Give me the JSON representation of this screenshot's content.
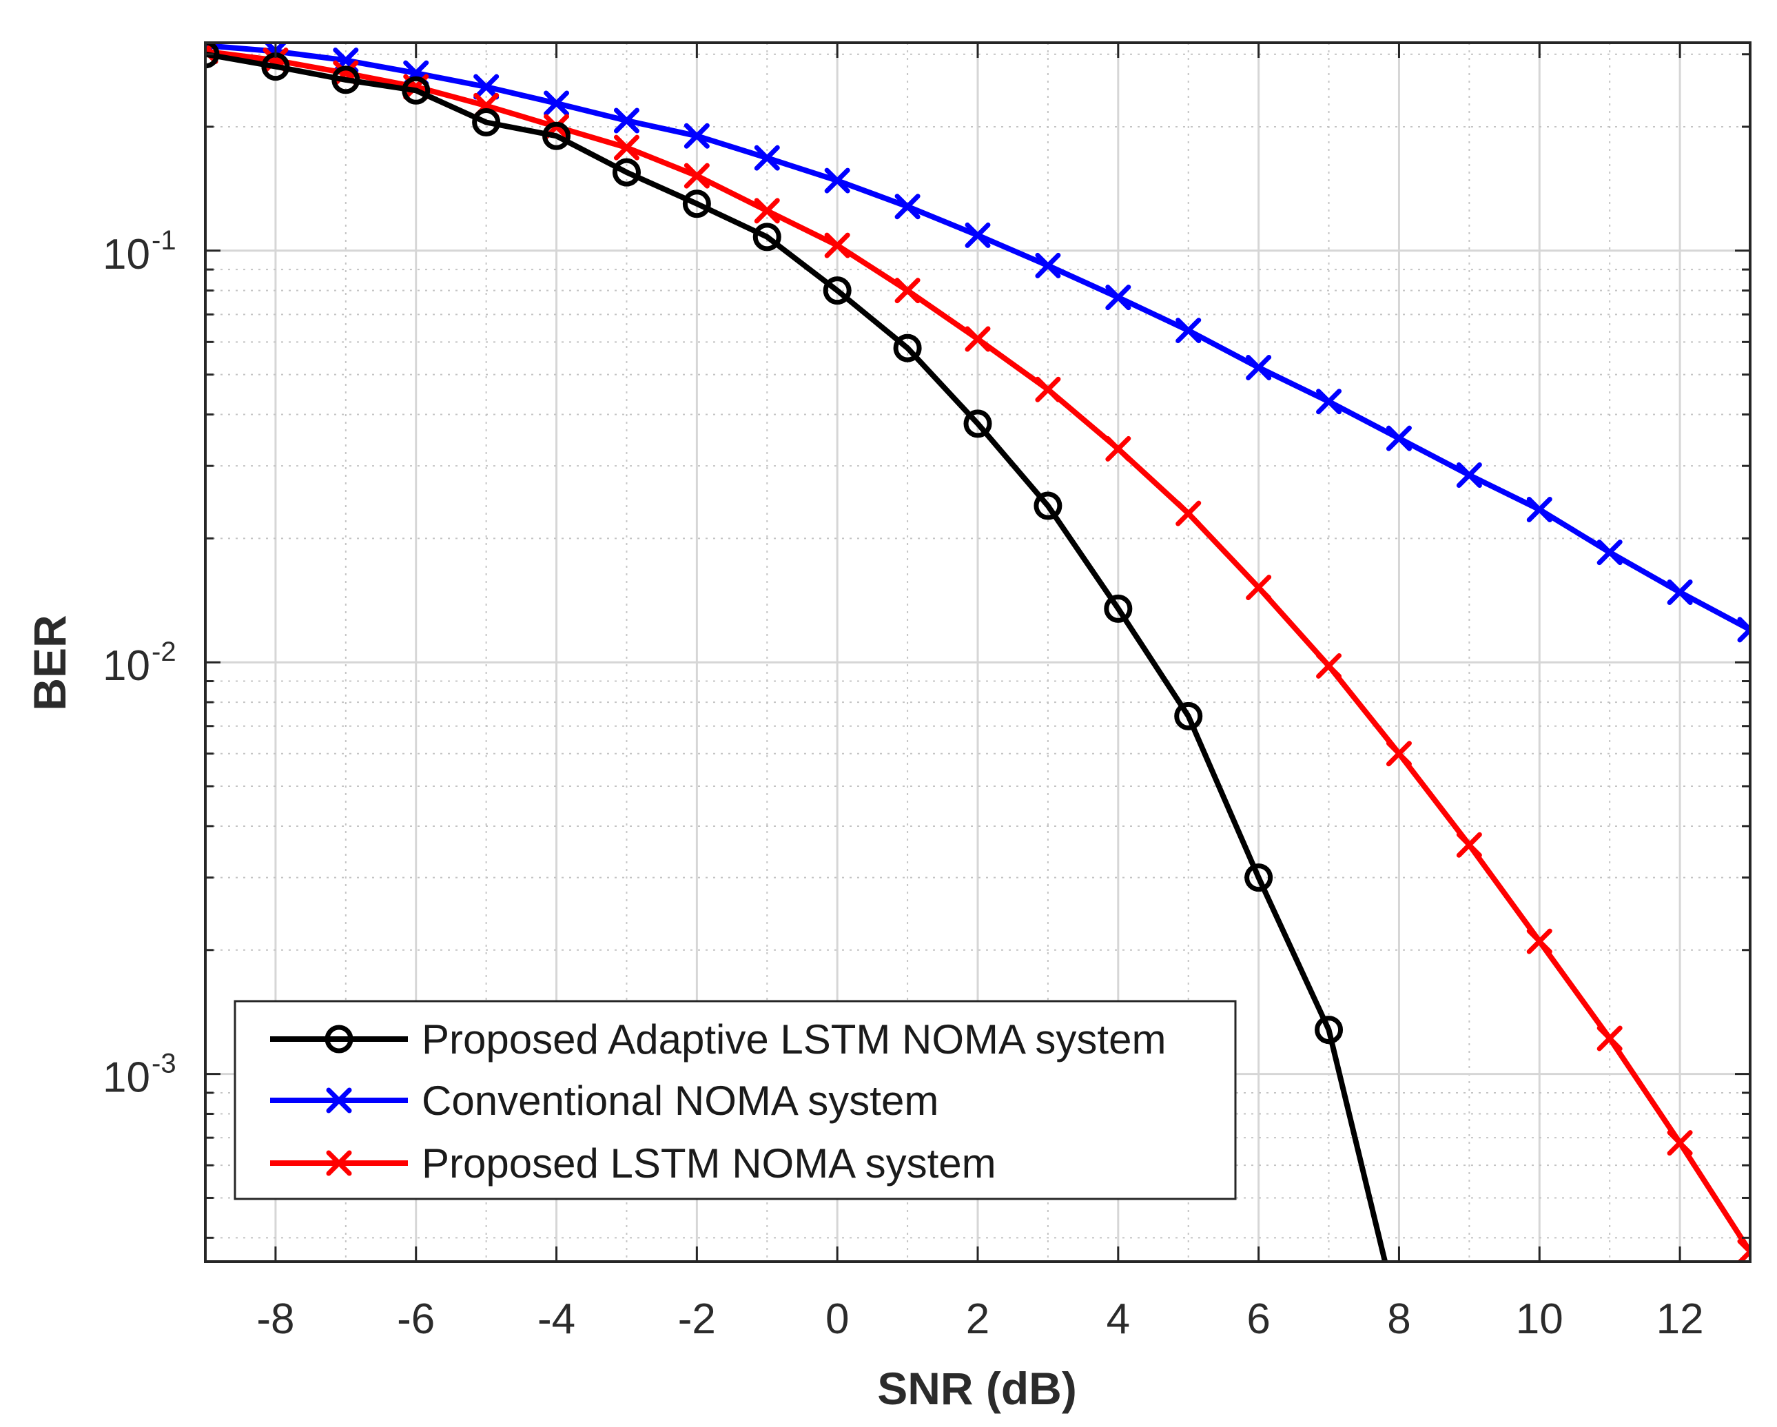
{
  "chart_data": {
    "type": "line",
    "title": "",
    "xlabel": "SNR (dB)",
    "ylabel": "BER",
    "yscale": "log",
    "xlim": [
      -9,
      13
    ],
    "ylim": [
      0.00035,
      0.32
    ],
    "grid": true,
    "legend_position": "bottom-left",
    "xticks": [
      -8,
      -6,
      -4,
      -2,
      0,
      2,
      4,
      6,
      8,
      10,
      12
    ],
    "xtick_labels": [
      "-8",
      "-6",
      "-4",
      "-2",
      "0",
      "2",
      "4",
      "6",
      "8",
      "10",
      "12"
    ],
    "yticks": [
      {
        "value": 0.1,
        "base": "10",
        "exp": "-1"
      },
      {
        "value": 0.01,
        "base": "10",
        "exp": "-2"
      },
      {
        "value": 0.001,
        "base": "10",
        "exp": "-3"
      }
    ],
    "series": [
      {
        "name": "Proposed Adaptive LSTM NOMA system",
        "color": "#000000",
        "marker": "circle",
        "x": [
          -9,
          -8,
          -7,
          -6,
          -5,
          -4,
          -3,
          -2,
          -1,
          0,
          1,
          2,
          3,
          4,
          5,
          6,
          7,
          7.8
        ],
        "values": [
          0.3,
          0.28,
          0.26,
          0.245,
          0.205,
          0.19,
          0.155,
          0.13,
          0.108,
          0.08,
          0.058,
          0.038,
          0.024,
          0.0135,
          0.0074,
          0.003,
          0.00128,
          0.00035
        ],
        "marker_count": 17
      },
      {
        "name": "Conventional NOMA system",
        "color": "#0000ff",
        "marker": "x",
        "x": [
          -9,
          -8,
          -7,
          -6,
          -5,
          -4,
          -3,
          -2,
          -1,
          0,
          1,
          2,
          3,
          4,
          5,
          6,
          7,
          8,
          9,
          10,
          11,
          12,
          13
        ],
        "values": [
          0.315,
          0.305,
          0.29,
          0.27,
          0.25,
          0.228,
          0.207,
          0.19,
          0.168,
          0.148,
          0.128,
          0.109,
          0.092,
          0.077,
          0.064,
          0.052,
          0.043,
          0.035,
          0.0285,
          0.0235,
          0.0185,
          0.0148,
          0.012
        ],
        "marker_count": 23
      },
      {
        "name": "Proposed LSTM NOMA system",
        "color": "#ff0000",
        "marker": "x",
        "x": [
          -9,
          -8,
          -7,
          -6,
          -5,
          -4,
          -3,
          -2,
          -1,
          0,
          1,
          2,
          3,
          4,
          5,
          6,
          7,
          8,
          9,
          10,
          11,
          12,
          13
        ],
        "values": [
          0.305,
          0.29,
          0.27,
          0.25,
          0.225,
          0.2,
          0.178,
          0.152,
          0.125,
          0.103,
          0.08,
          0.061,
          0.046,
          0.033,
          0.023,
          0.0152,
          0.0098,
          0.006,
          0.0036,
          0.0021,
          0.00122,
          0.00068,
          0.00037
        ],
        "marker_count": 23
      }
    ]
  }
}
